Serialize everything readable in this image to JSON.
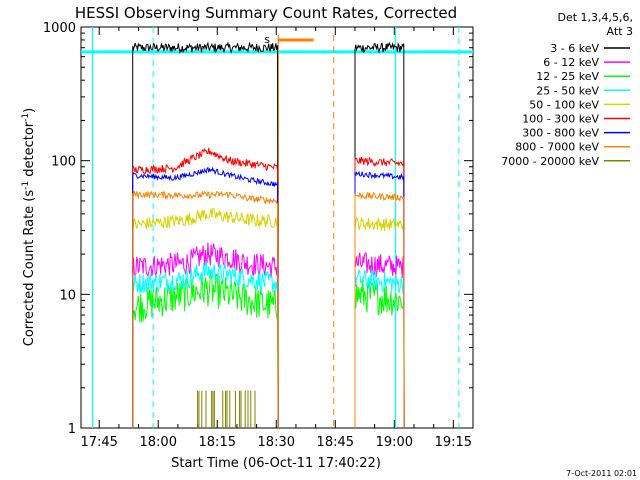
{
  "chart_data": {
    "type": "line",
    "title": "HESSI Observing Summary Count Rates, Corrected",
    "xlabel": "Start Time (06-Oct-11 17:40:22)",
    "ylabel": "Corrected Count Rate (s⁻¹ detector⁻¹)",
    "ylabel_parts": {
      "main": "Corrected Count Rate (s",
      "sup1": "-1",
      "mid": " detector",
      "sup2": "-1",
      "end": ")"
    },
    "y_scale": "log",
    "ylim": [
      1,
      1000
    ],
    "xlim": [
      "17:40:22",
      "19:20:00"
    ],
    "xlim_min": [
      0.37,
      100.0
    ],
    "x_ticks": [
      {
        "label": "17:45",
        "min": 5
      },
      {
        "label": "18:00",
        "min": 20
      },
      {
        "label": "18:15",
        "min": 35
      },
      {
        "label": "18:30",
        "min": 50
      },
      {
        "label": "18:45",
        "min": 65
      },
      {
        "label": "19:00",
        "min": 80
      },
      {
        "label": "19:15",
        "min": 95
      }
    ],
    "y_ticks": [
      {
        "label": "1",
        "value": 1
      },
      {
        "label": "10",
        "value": 10
      },
      {
        "label": "100",
        "value": 100
      },
      {
        "label": "1000",
        "value": 1000
      }
    ],
    "legend_header": [
      "Det 1,3,4,5,6,",
      "Att 3"
    ],
    "legend_position": "top-right, outside plot",
    "attenuator_marker": "s",
    "timestamp": "7-Oct-2011 02:01",
    "series": [
      {
        "name": "3 - 6 keV",
        "color": "#000000",
        "segments": [
          [
            [
              13.5,
              700
            ],
            [
              50.5,
              700
            ]
          ],
          [
            [
              70.0,
              700
            ],
            [
              82.5,
              700
            ]
          ]
        ],
        "noise": 0.035
      },
      {
        "name": "6 - 12 keV",
        "color": "#ff00ff",
        "segments": [
          [
            [
              13.5,
              16
            ],
            [
              27.0,
              17
            ],
            [
              32.0,
              20
            ],
            [
              38.0,
              19
            ],
            [
              43.0,
              17
            ],
            [
              50.5,
              16
            ]
          ],
          [
            [
              70.0,
              17
            ],
            [
              82.5,
              16
            ]
          ]
        ],
        "noise": 0.09
      },
      {
        "name": "12 - 25 keV",
        "color": "#00ff00",
        "segments": [
          [
            [
              13.5,
              8
            ],
            [
              27.0,
              10
            ],
            [
              32.0,
              11
            ],
            [
              38.0,
              10
            ],
            [
              43.0,
              9
            ],
            [
              50.5,
              8
            ]
          ],
          [
            [
              70.0,
              10
            ],
            [
              82.5,
              9
            ]
          ]
        ],
        "noise": 0.13
      },
      {
        "name": "25 - 50 keV",
        "color": "#00ffff",
        "segments": [
          [
            [
              13.5,
              12
            ],
            [
              27.0,
              13
            ],
            [
              32.0,
              15
            ],
            [
              38.0,
              14
            ],
            [
              43.0,
              13
            ],
            [
              50.5,
              12
            ]
          ],
          [
            [
              70.0,
              13
            ],
            [
              82.5,
              12
            ]
          ]
        ],
        "noise": 0.08
      },
      {
        "name": "50 - 100 keV",
        "color": "#d4d400",
        "segments": [
          [
            [
              13.5,
              33
            ],
            [
              27.0,
              36
            ],
            [
              32.0,
              40
            ],
            [
              38.0,
              38
            ],
            [
              43.0,
              36
            ],
            [
              50.5,
              35
            ]
          ],
          [
            [
              70.0,
              34
            ],
            [
              82.5,
              33
            ]
          ]
        ],
        "noise": 0.05
      },
      {
        "name": "100 - 300 keV",
        "color": "#ff0000",
        "segments": [
          [
            [
              13.5,
              85
            ],
            [
              24.0,
              88
            ],
            [
              29.0,
              105
            ],
            [
              33.0,
              118
            ],
            [
              38.0,
              100
            ],
            [
              43.0,
              95
            ],
            [
              50.5,
              88
            ]
          ],
          [
            [
              70.0,
              100
            ],
            [
              82.5,
              95
            ]
          ]
        ],
        "noise": 0.03
      },
      {
        "name": "300 - 800 keV",
        "color": "#0000ff",
        "segments": [
          [
            [
              13.5,
              78
            ],
            [
              24.0,
              74
            ],
            [
              29.0,
              80
            ],
            [
              33.0,
              86
            ],
            [
              38.0,
              78
            ],
            [
              43.0,
              72
            ],
            [
              50.5,
              66
            ]
          ],
          [
            [
              70.0,
              80
            ],
            [
              82.5,
              75
            ]
          ]
        ],
        "noise": 0.02
      },
      {
        "name": "800 - 7000 keV",
        "color": "#ff8000",
        "segments": [
          [
            [
              13.5,
              56
            ],
            [
              27.0,
              55
            ],
            [
              38.0,
              56
            ],
            [
              43.0,
              52
            ],
            [
              50.5,
              50
            ]
          ],
          [
            [
              70.0,
              55
            ],
            [
              82.5,
              53
            ]
          ]
        ],
        "noise": 0.025
      },
      {
        "name": "7000 - 20000 keV",
        "color": "#808000",
        "segments": [
          [
            [
              30.0,
              1.9
            ],
            [
              45.0,
              1.9
            ]
          ]
        ],
        "noise": 0.0
      }
    ]
  }
}
